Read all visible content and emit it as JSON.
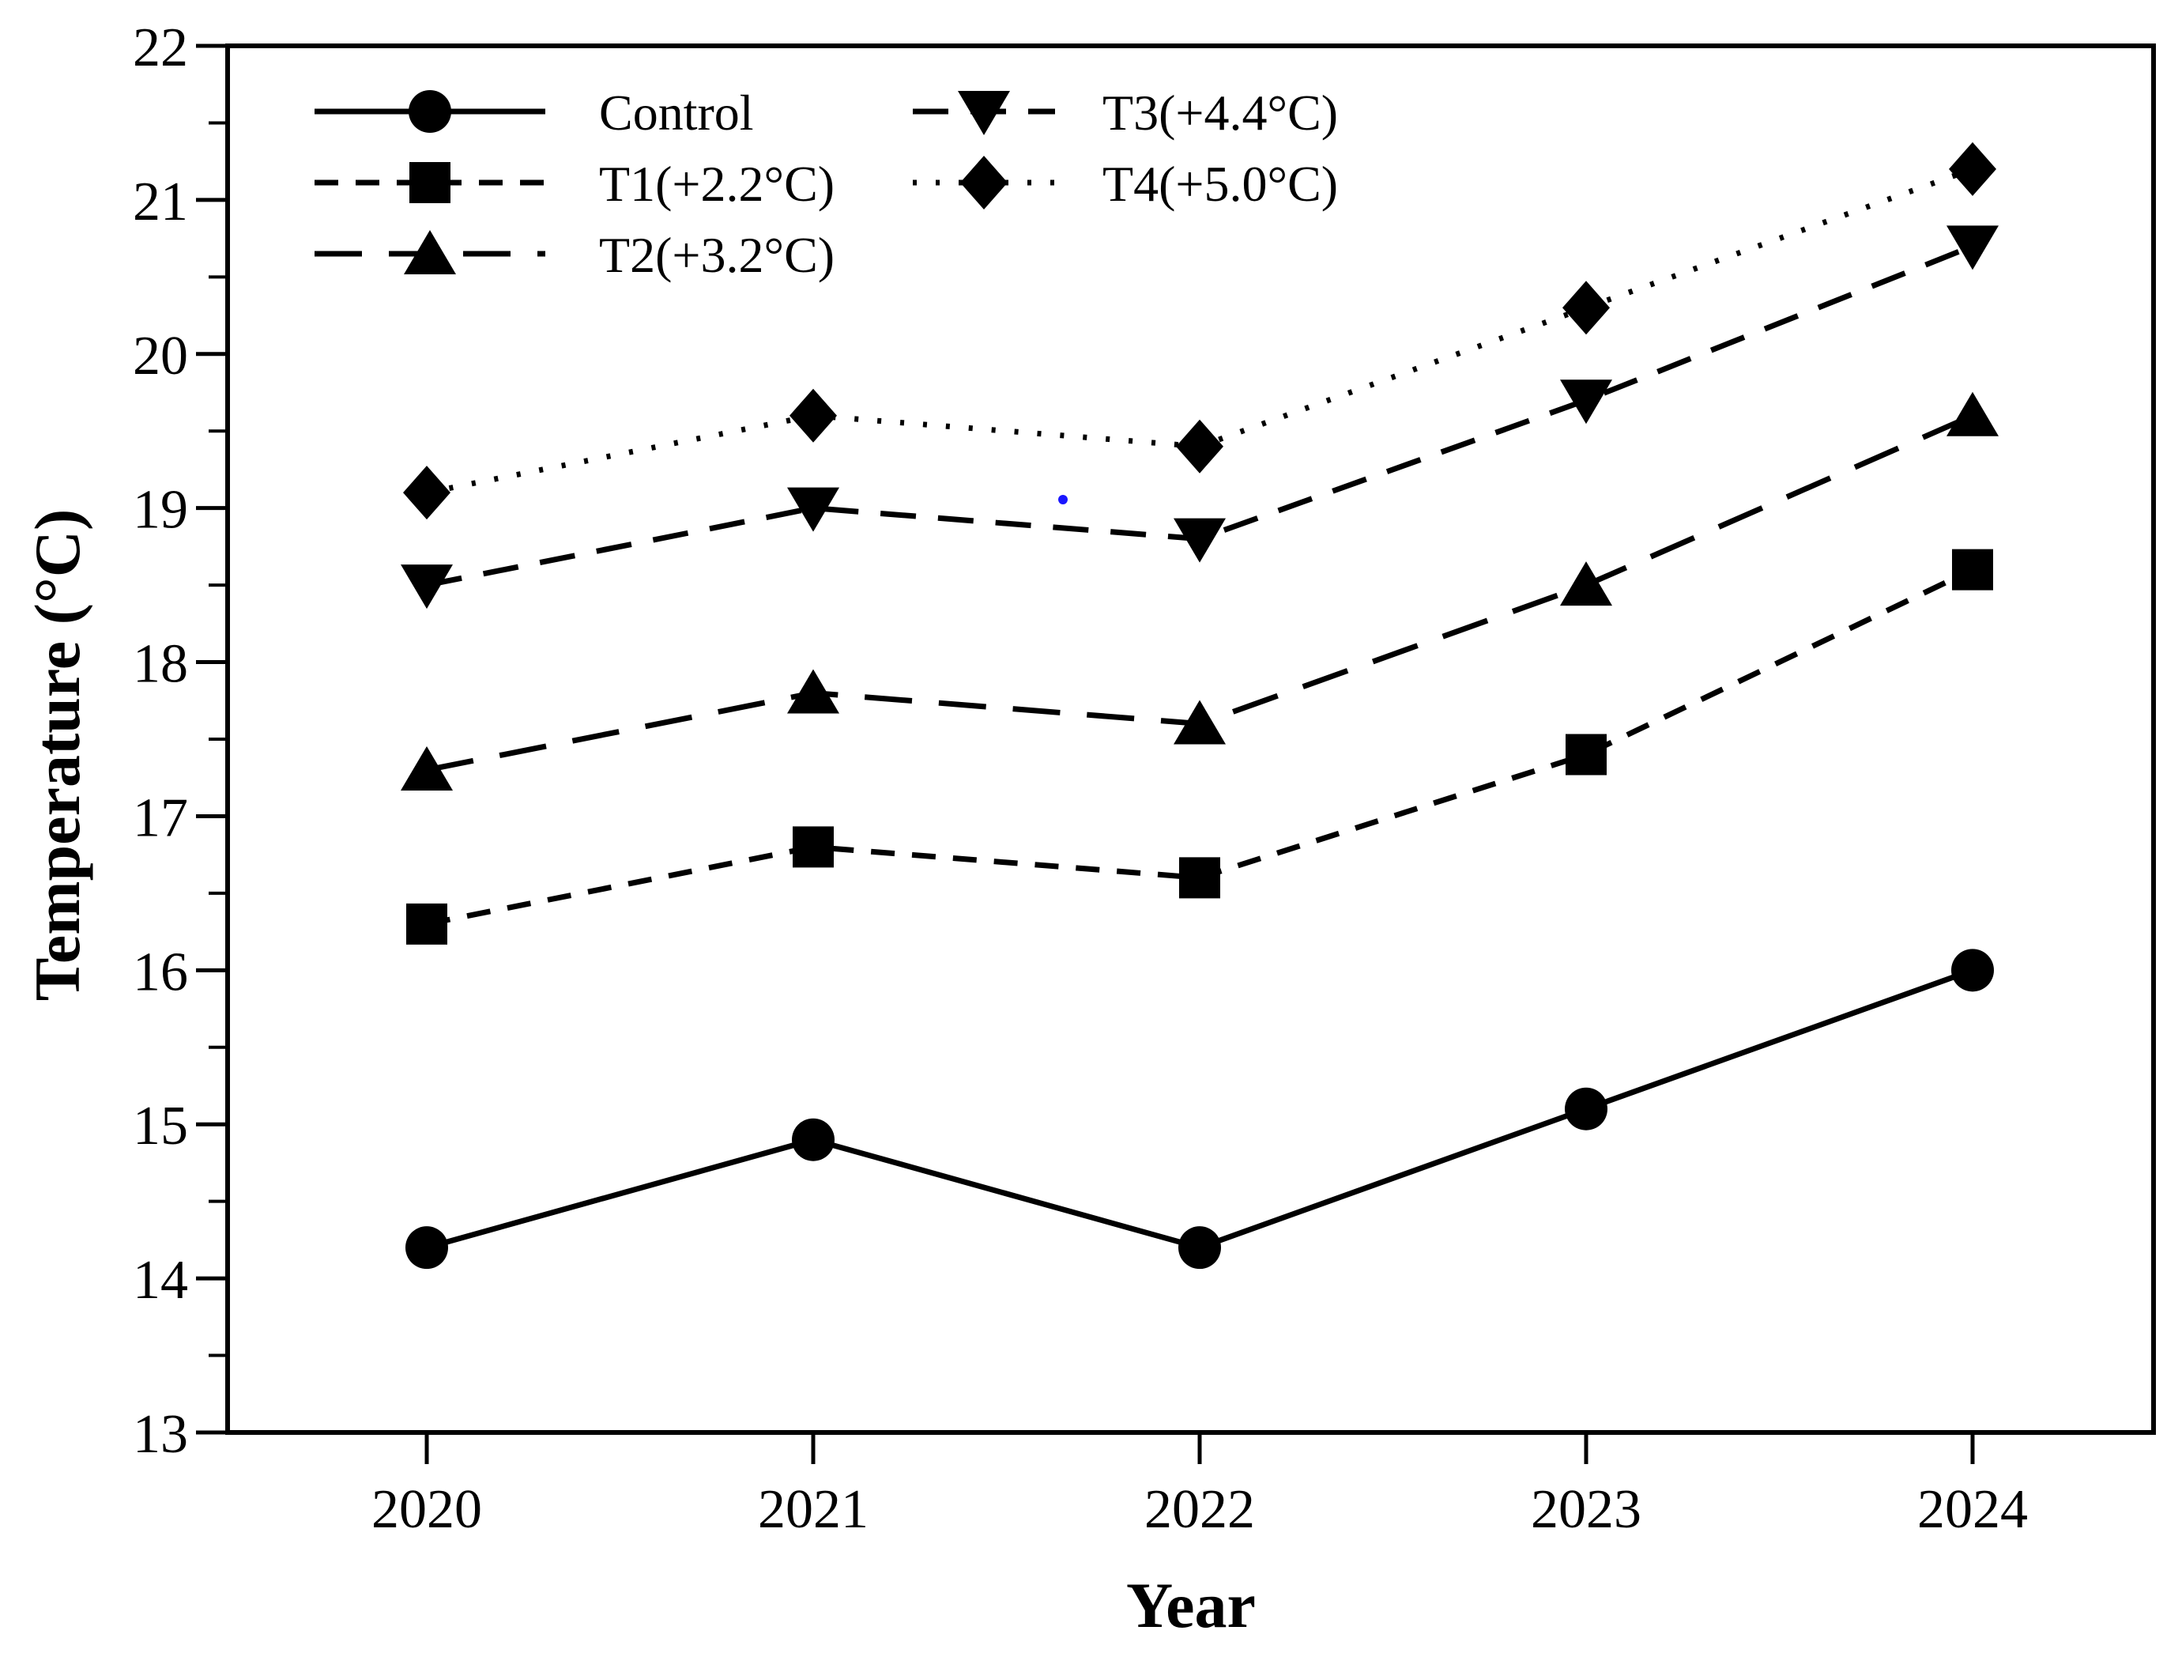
{
  "figure": {
    "background": "#ffffff",
    "axis_color": "#000000"
  },
  "chart_data": {
    "type": "line",
    "title": "",
    "xlabel": "Year",
    "ylabel": "Temperature (°C)",
    "categories": [
      "2020",
      "2021",
      "2022",
      "2023",
      "2024"
    ],
    "ylim": [
      13,
      22
    ],
    "yticks": [
      "13",
      "14",
      "15",
      "16",
      "17",
      "18",
      "19",
      "20",
      "21",
      "22"
    ],
    "ytick_major_step": 1,
    "ytick_minor_step": 0.5,
    "grid": false,
    "legend_position": "top-left-inside",
    "series": [
      {
        "name": "Control",
        "marker": "circle",
        "linestyle": "solid",
        "color": "#000000",
        "values": [
          14.2,
          14.9,
          14.2,
          15.1,
          16.0
        ]
      },
      {
        "name": "T1(+2.2°C)",
        "marker": "square",
        "linestyle": "dashed",
        "color": "#000000",
        "values": [
          16.3,
          16.8,
          16.6,
          17.4,
          18.6
        ]
      },
      {
        "name": "T2(+3.2°C)",
        "marker": "triangle-up",
        "linestyle": "long-dash",
        "color": "#000000",
        "values": [
          17.3,
          17.8,
          17.6,
          18.5,
          19.6
        ]
      },
      {
        "name": "T3(+4.4°C)",
        "marker": "triangle-down",
        "linestyle": "dash",
        "color": "#000000",
        "values": [
          18.5,
          19.0,
          18.8,
          19.7,
          20.7
        ]
      },
      {
        "name": "T4(+5.0°C)",
        "marker": "diamond",
        "linestyle": "dotted",
        "color": "#000000",
        "values": [
          19.1,
          19.6,
          19.4,
          20.3,
          21.2
        ]
      }
    ],
    "artifact": {
      "description": "stray small blue dot inside plot area",
      "color": "#1a16ff"
    }
  }
}
